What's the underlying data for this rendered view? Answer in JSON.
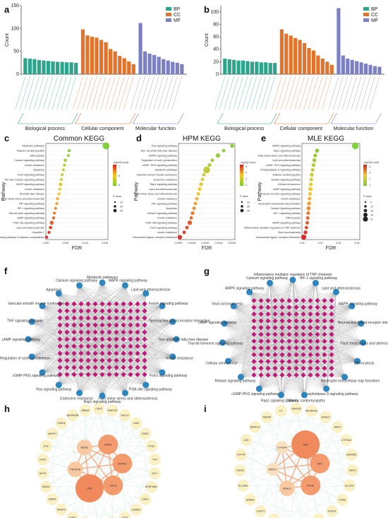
{
  "panels": {
    "a": {
      "label": "a"
    },
    "b": {
      "label": "b"
    },
    "c": {
      "label": "c",
      "title": "Common KEGG"
    },
    "d": {
      "label": "d",
      "title": "HPM KEGG"
    },
    "e": {
      "label": "e",
      "title": "MLE KEGG"
    },
    "f": {
      "label": "f"
    },
    "g": {
      "label": "g"
    },
    "h": {
      "label": "h"
    },
    "i": {
      "label": "i"
    }
  },
  "go_legend": [
    {
      "name": "BP",
      "color": "#2ca58d"
    },
    {
      "name": "CC",
      "color": "#e3722b"
    },
    {
      "name": "MF",
      "color": "#7b7fc4"
    }
  ],
  "go_groups": [
    "Biological process",
    "Cellular component",
    "Molecular function"
  ],
  "chart_data": [
    {
      "type": "bar",
      "panel": "a",
      "ylabel": "Count",
      "ylim": [
        0,
        150
      ],
      "yticks": [
        0,
        50,
        100,
        150
      ],
      "series": [
        {
          "name": "BP",
          "values": [
            35,
            34,
            33,
            31,
            30,
            29,
            28,
            27,
            27,
            26,
            26,
            25
          ]
        },
        {
          "name": "CC",
          "values": [
            98,
            85,
            82,
            80,
            75,
            70,
            55,
            50,
            40,
            35,
            28,
            22
          ]
        },
        {
          "name": "MF",
          "values": [
            112,
            50,
            45,
            42,
            38,
            33,
            30,
            27,
            25,
            22
          ]
        }
      ]
    },
    {
      "type": "bar",
      "panel": "b",
      "ylabel": "Count",
      "ylim": [
        0,
        110
      ],
      "yticks": [
        0,
        20,
        40,
        60,
        80,
        100
      ],
      "series": [
        {
          "name": "BP",
          "values": [
            25,
            24,
            23,
            22,
            22,
            21,
            20,
            20,
            19,
            19,
            18,
            18
          ]
        },
        {
          "name": "CC",
          "values": [
            72,
            65,
            62,
            58,
            55,
            50,
            42,
            38,
            30,
            25,
            20,
            15
          ]
        },
        {
          "name": "MF",
          "values": [
            106,
            30,
            25,
            23,
            21,
            19,
            17,
            15,
            13,
            12
          ]
        }
      ]
    },
    {
      "type": "scatter",
      "panel": "c",
      "xlabel": "FDR",
      "ylabel": "Pathway",
      "xticks": [
        "0.000",
        "0.005",
        "0.010",
        "0.015"
      ],
      "categories": [
        "Metabolic pathways",
        "Diabetic cardiomyopathy",
        "Efferocytosis",
        "Calcium signaling pathway",
        "Insulin resistance",
        "Apoptosis",
        "FoxO signaling pathway",
        "Toll- like receptor signaling pathway",
        "MAPK signaling pathway",
        "Insulin resistance",
        "Alcoholic liver disease",
        "Fluid shear stress and atherosclerosis",
        "TNF signaling pathway",
        "HIF-1 signaling pathway",
        "Neurotrophin signaling pathway",
        "cAMP signaling pathway",
        "PI3K- Akt signaling pathway",
        "Lipid and atherosclerosis",
        "Hepatitis C",
        "AGE- RAGE signaling pathway in diabetic complications"
      ],
      "x": [
        0.0155,
        0.006,
        0.0058,
        0.005,
        0.0048,
        0.0045,
        0.0042,
        0.004,
        0.0038,
        0.0036,
        0.0034,
        0.003,
        0.0028,
        0.0025,
        0.0022,
        0.002,
        0.0015,
        0.0012,
        0.0008,
        0.0002
      ],
      "count": [
        45,
        12,
        10,
        14,
        11,
        10,
        11,
        10,
        18,
        11,
        10,
        13,
        12,
        11,
        11,
        13,
        20,
        15,
        12,
        12
      ],
      "legend_color_title": "-log10(Count)",
      "legend_color_ticks": [
        7,
        6,
        5
      ],
      "legend_size_title": "P value",
      "legend_size_values": [
        20,
        30,
        40
      ]
    },
    {
      "type": "scatter",
      "panel": "d",
      "xlabel": "FDR",
      "ylabel": "Pathway",
      "xticks": [
        "0.0000",
        "0.0005",
        "0.0010",
        "0.0015",
        "0.0020"
      ],
      "categories": [
        "Ras signaling pathway",
        "Non- alcoholic fatty liver disease",
        "MAPK signaling pathway",
        "Regulation of actin cytoskeleton",
        "cGMP- PKG signaling pathway",
        "Metabolic pathways",
        "Vascular smooth muscle contraction",
        "Endocrine resistance",
        "Rap1 signaling pathway",
        "Lipid and atherosclerosis",
        "Fluid shear stress and atherosclerosis",
        "Insulin resistance",
        "TNF signaling pathway",
        "Apoptosis",
        "Calcium signaling pathway",
        "Insulin resistance",
        "PI3K- Akt signaling pathway",
        "FoxO signaling pathway",
        "Insulin resistance",
        "Neuroactive ligand- receptor interaction"
      ],
      "x": [
        0.0019,
        0.0016,
        0.0014,
        0.0012,
        0.0011,
        0.001,
        0.0009,
        0.00085,
        0.0008,
        0.00075,
        0.0007,
        0.00065,
        0.0006,
        0.00055,
        0.0005,
        0.00045,
        0.0004,
        0.0003,
        0.0002,
        5e-05
      ],
      "count": [
        18,
        14,
        22,
        15,
        16,
        40,
        14,
        13,
        17,
        16,
        14,
        13,
        14,
        13,
        16,
        13,
        22,
        14,
        13,
        20
      ],
      "legend_color_title": "-log10(Count)",
      "legend_color_ticks": [
        5,
        4,
        3,
        2
      ],
      "legend_size_title": "P value",
      "legend_size_values": [
        20,
        30,
        40
      ]
    },
    {
      "type": "scatter",
      "panel": "e",
      "xlabel": "FDR",
      "ylabel": "Pathway",
      "xticks": [
        "0.00",
        "0.02",
        "0.04",
        "0.06"
      ],
      "categories": [
        "MAPK signaling pathway",
        "Rap1 signaling pathway",
        "Fluid shear stress and atherosclerosis",
        "Lipid and atherosclerosis",
        "cGMP- PKG signaling pathway",
        "Phospholipase D signaling pathway",
        "Diabetic cardiomyopathy",
        "Relaxin signaling pathway",
        "Cellular senescence",
        "cAMP signaling pathway",
        "Thyroid hormone signaling pathway",
        "Insulin resistance",
        "Neutrophil extracellular trap formation",
        "Calcium signaling pathway",
        "HIF-1 signaling pathway",
        "Efferocytosis",
        "AMPK signaling pathway",
        "Inflammatory mediator regulation of TRP channels",
        "Viral carcinogenesis",
        "Neuroactive ligand- receptor interaction"
      ],
      "x": [
        0.06,
        0.017,
        0.015,
        0.014,
        0.013,
        0.012,
        0.011,
        0.0105,
        0.01,
        0.0095,
        0.009,
        0.0085,
        0.008,
        0.0075,
        0.007,
        0.0065,
        0.006,
        0.005,
        0.004,
        0.002
      ],
      "count": [
        21,
        10,
        9,
        10,
        9,
        8,
        9,
        8,
        8,
        10,
        8,
        8,
        9,
        10,
        8,
        8,
        8,
        7,
        9,
        14
      ],
      "legend_color_title": "-log10(Count)",
      "legend_color_ticks": [
        4,
        3,
        2,
        1
      ],
      "legend_size_title": "P value",
      "legend_size_values": [
        9,
        12,
        15,
        18,
        21
      ]
    }
  ],
  "network_f": {
    "pathways": [
      "Metabolic pathways",
      "MAPK signaling pathway",
      "Lipid and atherosclerosis",
      "Insulin signaling pathway",
      "Neuroactive ligand-receptor interaction",
      "Non-alcoholic fatty liver disease",
      "Insulin resistance",
      "FoxO signaling pathway",
      "PI3K-Akt signaling pathway",
      "Fluid shear stress and atherosclerosis",
      "Rap1 signaling pathway",
      "Endocrine resistance",
      "Ras signaling pathway",
      "cGMP-PKG signaling pathway",
      "Regulation of actin cytoskeleton",
      "cAMP signaling pathway",
      "TNF signaling pathway",
      "Vascular smooth muscle contraction",
      "Apoptosis",
      "Calcium signaling pathway"
    ]
  },
  "network_g": {
    "pathways": [
      "Inflammatory mediator regulation of TRP channels",
      "HIF-1 signaling pathway",
      "Lipid and atherosclerosis",
      "MAPK signaling pathway",
      "Neuroactive ligand-receptor interaction",
      "Fluid shear stress and atherosclerosis",
      "Efferocytosis",
      "Neutrophil extracellular trap formation",
      "Phospholipase D signaling pathway",
      "Diabetic cardiomyopathy",
      "Rap1 signaling pathway",
      "cGMP-PKG signaling pathway",
      "Relaxin signaling pathway",
      "Cellular senescence",
      "Thyroid hormone signaling pathway",
      "cAMP signaling pathway",
      "Viral carcinogenesis",
      "AMPK signaling pathway",
      "Calcium signaling pathway"
    ]
  },
  "ppi_h": {
    "hubs": [
      {
        "name": "MMP9",
        "size": "large"
      },
      {
        "name": "MAPK3",
        "size": "large"
      },
      {
        "name": "HIF1A",
        "size": "large"
      },
      {
        "name": "TNF",
        "size": "xlarge"
      },
      {
        "name": "PRKACB",
        "size": "medium"
      },
      {
        "name": "MDM2",
        "size": "medium"
      }
    ],
    "nodes": [
      "CDK5",
      "HMGCR",
      "KNCJ1",
      "XIAP",
      "ESR2",
      "PTK2",
      "TYR",
      "GLI1",
      "SERPINE1",
      "CDK1",
      "CARM1",
      "GCG",
      "IL2",
      "PRMT1",
      "HNF4A",
      "EZH2",
      "PRMT5",
      "KIBRA",
      "MDM2",
      "NOS3",
      "FGF2",
      "ACE",
      "MAPK7",
      "CPAH1",
      "ADORA2B",
      "MBAM"
    ]
  },
  "ppi_i": {
    "hubs": [
      {
        "name": "ALB",
        "size": "xlarge"
      },
      {
        "name": "SRC",
        "size": "large"
      },
      {
        "name": "MTOR",
        "size": "large"
      },
      {
        "name": "HDAC1",
        "size": "medium"
      },
      {
        "name": "MR3C1",
        "size": "small"
      },
      {
        "name": "CYP3A4",
        "size": "small"
      }
    ],
    "nodes": [
      "HMGCR",
      "ADORA2A",
      "HDAC3",
      "ARG1",
      "CYP2A6",
      "SDKRB2",
      "SIRT2",
      "SLC2A1",
      "CDK6",
      "HTR2A",
      "CHEK1",
      "OPRM1",
      "SIRT3",
      "CYP1A2",
      "GSTP1",
      "ADRB2",
      "SLC6A3",
      "TGFB1",
      "CRTTA",
      "ACE",
      "MAPK14",
      "ANPEP",
      "F2"
    ]
  }
}
